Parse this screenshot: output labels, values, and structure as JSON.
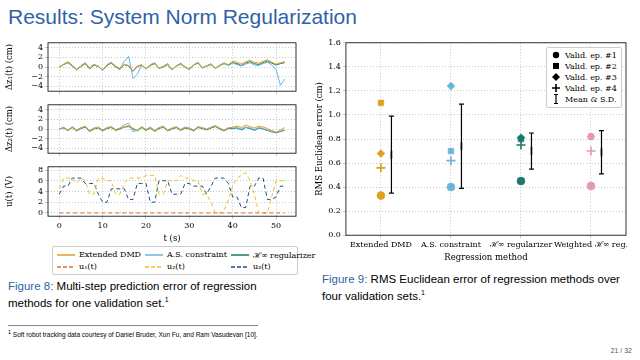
{
  "slide": {
    "title": "Results: System Norm Regularization",
    "captions": [
      {
        "label": "Figure 8:",
        "text": "Multi-step prediction error of regression methods for one validation set.",
        "note": "1"
      },
      {
        "label": "Figure 9:",
        "text": "RMS Euclidean error of regression methods over four validation sets.",
        "note": "1"
      }
    ],
    "footnote": {
      "mark": "1",
      "text": "Soft robot tracking data courtesy of Daniel Bruder, Xun Fu, and Ram Vasudevan [10]."
    },
    "page": "21 / 32"
  },
  "chart_data": [
    {
      "type": "line",
      "y_label": "Δz₁(t) (cm)",
      "grid": true,
      "tick_labels": "y",
      "legend": "bottom",
      "x": [
        0,
        1,
        2,
        3,
        4,
        5,
        6,
        7,
        8,
        9,
        10,
        11,
        12,
        13,
        14,
        15,
        16,
        17,
        18,
        19,
        20,
        21,
        22,
        23,
        24,
        25,
        26,
        27,
        28,
        29,
        30,
        31,
        32,
        33,
        34,
        35,
        36,
        37,
        38,
        39,
        40,
        41,
        42,
        43,
        44,
        45,
        46,
        47,
        48,
        49,
        50,
        51,
        52
      ],
      "xlim": [
        -2.6,
        54.6
      ],
      "xticks": [
        0,
        10,
        20,
        30,
        40,
        50
      ],
      "ylim": [
        -5,
        5
      ],
      "yticks": [
        {
          "value": -4,
          "label": "−4"
        },
        {
          "value": -2,
          "label": "−2"
        },
        0,
        2,
        4
      ],
      "series": [
        {
          "name": "Extended DMD",
          "color": "#e0a020",
          "line_style": "solid",
          "values": [
            0,
            0.5,
            1.0,
            0.3,
            -0.5,
            0.2,
            0.8,
            -0.3,
            0.5,
            0.2,
            -0.6,
            0.4,
            0.9,
            0.1,
            -0.4,
            0.6,
            0.3,
            -0.8,
            0.2,
            0.5,
            -0.3,
            0.4,
            0.8,
            -0.2,
            0.1,
            0.6,
            -0.5,
            0.3,
            0.7,
            0.1,
            -0.4,
            0.5,
            0.9,
            -0.1,
            0.3,
            0.6,
            -0.2,
            0.4,
            0.8,
            0.5,
            1.2,
            1.0,
            0.6,
            1.1,
            1.4,
            1.0,
            0.8,
            1.2,
            1.5,
            1.0,
            0.6,
            0.9,
            1.1
          ]
        },
        {
          "name": "A.S. constraint",
          "color": "#6bb3e0",
          "line_style": "solid",
          "values": [
            0,
            0.6,
            1.1,
            0.4,
            -0.6,
            0.3,
            0.9,
            -0.2,
            0.6,
            0.1,
            -0.7,
            0.5,
            1.0,
            0.2,
            -0.3,
            1.2,
            2.2,
            -2.4,
            -1.5,
            0.4,
            -0.4,
            0.5,
            0.9,
            -0.3,
            0.2,
            0.7,
            -0.6,
            0.2,
            0.8,
            0.0,
            -0.5,
            0.4,
            1.0,
            -0.2,
            0.2,
            0.7,
            -0.3,
            0.3,
            0.9,
            0.3,
            0.8,
            0.5,
            0.2,
            0.6,
            0.9,
            0.4,
            0.3,
            0.7,
            1.0,
            0.4,
            -0.5,
            -3.8,
            -2.5
          ]
        },
        {
          "name": "ℋ∞ regularizer",
          "color": "#1a7a6e",
          "line_style": "solid",
          "values": [
            0,
            0.5,
            0.9,
            0.2,
            -0.6,
            0.1,
            0.7,
            -0.4,
            0.4,
            0.1,
            -0.7,
            0.3,
            0.8,
            0.0,
            -0.5,
            0.5,
            0.2,
            -0.9,
            0.1,
            0.4,
            -0.4,
            0.3,
            0.7,
            -0.3,
            0.0,
            0.5,
            -0.6,
            0.2,
            0.6,
            0.0,
            -0.5,
            0.4,
            0.8,
            -0.2,
            0.2,
            0.5,
            -0.3,
            0.3,
            0.7,
            0.4,
            0.9,
            0.7,
            0.3,
            0.8,
            1.1,
            0.7,
            0.5,
            0.9,
            1.2,
            0.8,
            0.4,
            0.7,
            0.9
          ]
        }
      ]
    },
    {
      "type": "line",
      "y_label": "Δz₂(t) (cm)",
      "grid": true,
      "tick_labels": "y",
      "x": [
        0,
        1,
        2,
        3,
        4,
        5,
        6,
        7,
        8,
        9,
        10,
        11,
        12,
        13,
        14,
        15,
        16,
        17,
        18,
        19,
        20,
        21,
        22,
        23,
        24,
        25,
        26,
        27,
        28,
        29,
        30,
        31,
        32,
        33,
        34,
        35,
        36,
        37,
        38,
        39,
        40,
        41,
        42,
        43,
        44,
        45,
        46,
        47,
        48,
        49,
        50,
        51,
        52
      ],
      "xlim": [
        -2.6,
        54.6
      ],
      "xticks": [
        0,
        10,
        20,
        30,
        40,
        50
      ],
      "ylim": [
        -5,
        5
      ],
      "yticks": [
        {
          "value": -4,
          "label": "−4"
        },
        {
          "value": -2,
          "label": "−2"
        },
        0,
        2,
        4
      ],
      "series": [
        {
          "name": "Extended DMD",
          "color": "#e0a020",
          "line_style": "solid",
          "values": [
            0,
            0.3,
            -0.2,
            0.4,
            -0.3,
            0.2,
            0.5,
            -0.4,
            0.1,
            0.3,
            -0.3,
            0.2,
            0.4,
            -0.2,
            0.1,
            0.5,
            0.7,
            0.2,
            -0.3,
            0.4,
            -0.2,
            0.3,
            -0.4,
            0.2,
            0.5,
            -0.3,
            0.1,
            0.4,
            -0.2,
            0.3,
            0.1,
            -0.3,
            0.4,
            0.2,
            -0.1,
            0.3,
            0.6,
            0.1,
            -0.3,
            0.2,
            0.4,
            0.6,
            0.3,
            0.8,
            0.5,
            0.2,
            0.6,
            0.4,
            0.1,
            -0.3,
            -0.6,
            -0.4,
            -0.2
          ]
        },
        {
          "name": "A.S. constraint",
          "color": "#6bb3e0",
          "line_style": "solid",
          "values": [
            0,
            0.4,
            -0.3,
            0.5,
            -0.2,
            0.3,
            0.6,
            -0.3,
            0.2,
            0.4,
            -0.2,
            0.3,
            0.5,
            -0.1,
            0.2,
            0.9,
            1.2,
            -0.6,
            -0.2,
            0.5,
            -0.1,
            0.4,
            -0.3,
            0.3,
            0.6,
            -0.2,
            0.2,
            0.5,
            -0.1,
            0.4,
            0.2,
            -0.2,
            0.5,
            0.3,
            0.0,
            0.4,
            0.7,
            0.2,
            -0.2,
            0.3,
            0.2,
            0.3,
            0.0,
            0.4,
            0.2,
            -0.1,
            0.3,
            0.1,
            -0.2,
            -0.5,
            -0.8,
            -0.2,
            0.3
          ]
        },
        {
          "name": "ℋ∞ regularizer",
          "color": "#1a7a6e",
          "line_style": "solid",
          "values": [
            0,
            0.2,
            -0.3,
            0.3,
            -0.4,
            0.1,
            0.4,
            -0.5,
            0.0,
            0.2,
            -0.4,
            0.1,
            0.3,
            -0.3,
            0.0,
            0.4,
            0.5,
            0.0,
            -0.4,
            0.3,
            -0.3,
            0.2,
            -0.5,
            0.1,
            0.4,
            -0.4,
            0.0,
            0.3,
            -0.3,
            0.2,
            0.0,
            -0.4,
            0.3,
            0.1,
            -0.2,
            0.2,
            0.5,
            0.0,
            -0.4,
            0.1,
            0.1,
            0.2,
            -0.2,
            0.3,
            0.1,
            -0.3,
            0.2,
            0.0,
            -0.3,
            -0.6,
            -0.8,
            -0.5,
            -0.3
          ]
        }
      ]
    },
    {
      "type": "line",
      "y_label": "u(t) (V)",
      "x_label": "t (s)",
      "grid": true,
      "legend": "bottom",
      "x": [
        0,
        1,
        2,
        3,
        4,
        5,
        6,
        7,
        8,
        9,
        10,
        11,
        12,
        13,
        14,
        15,
        16,
        17,
        18,
        19,
        20,
        21,
        22,
        23,
        24,
        25,
        26,
        27,
        28,
        29,
        30,
        31,
        32,
        33,
        34,
        35,
        36,
        37,
        38,
        39,
        40,
        41,
        42,
        43,
        44,
        45,
        46,
        47,
        48,
        49,
        50,
        51,
        52
      ],
      "xlim": [
        -2.6,
        54.6
      ],
      "xticks": [
        0,
        10,
        20,
        30,
        40,
        50
      ],
      "ylim": [
        -0.6,
        8.6
      ],
      "yticks": [
        0,
        2,
        4,
        6,
        8
      ],
      "series": [
        {
          "name": "u₁(t)",
          "color": "#d9702a",
          "line_style": "dashed",
          "values": [
            0,
            0,
            0,
            0,
            0,
            0,
            0,
            0,
            0,
            0,
            0,
            0,
            0,
            0,
            0,
            0,
            0,
            0,
            0,
            0,
            0,
            0,
            0,
            0,
            0,
            0,
            0,
            0,
            0,
            0,
            0,
            0,
            0,
            0,
            0,
            0,
            0,
            0,
            0,
            0,
            0,
            0,
            0,
            0,
            0,
            0,
            0,
            0,
            0,
            0,
            0,
            0,
            0
          ]
        },
        {
          "name": "u₂(t)",
          "color": "#f0c020",
          "line_style": "dashed",
          "values": [
            4.5,
            6.5,
            6.5,
            6.5,
            5.5,
            6.5,
            6.0,
            3.5,
            3.5,
            6.5,
            6.5,
            6.0,
            6.0,
            3.5,
            3.5,
            5.5,
            6.5,
            6.5,
            6.5,
            6.5,
            7.0,
            7.0,
            7.0,
            3.5,
            3.5,
            6.0,
            6.0,
            6.0,
            7.0,
            6.5,
            6.5,
            6.0,
            6.0,
            3.5,
            3.5,
            2.0,
            0.0,
            0.0,
            0.5,
            2.5,
            5.0,
            6.5,
            7.0,
            7.5,
            6.0,
            3.5,
            0.0,
            0.0,
            0.0,
            3.0,
            6.0,
            6.0,
            6.0
          ]
        },
        {
          "name": "u₃(t)",
          "color": "#1a4e8a",
          "line_style": "dashed",
          "values": [
            3.5,
            5.0,
            5.0,
            6.5,
            6.5,
            6.5,
            5.5,
            5.5,
            5.5,
            3.5,
            2.0,
            2.0,
            4.5,
            4.5,
            4.5,
            4.5,
            2.5,
            2.5,
            5.5,
            5.5,
            5.5,
            2.0,
            2.0,
            6.0,
            6.0,
            6.0,
            3.5,
            3.5,
            3.5,
            5.5,
            5.5,
            5.0,
            5.0,
            5.0,
            3.5,
            5.0,
            6.5,
            6.5,
            6.5,
            5.5,
            3.0,
            3.0,
            1.0,
            1.0,
            5.0,
            5.0,
            6.5,
            6.5,
            2.5,
            2.5,
            3.0,
            5.0,
            5.0
          ]
        }
      ]
    },
    {
      "type": "scatter",
      "y_label": "RMS Euclidean error (cm)",
      "x_label": "Regression method",
      "grid": true,
      "legend": "upper right",
      "categories": [
        "Extended DMD",
        "A.S. constraint",
        "ℋ∞ regularizer",
        "Weighted ℋ∞ reg."
      ],
      "ylim": [
        0,
        1.6
      ],
      "yticks": [
        {
          "value": 0,
          "label": "0.0"
        },
        0.2,
        0.4,
        0.6,
        0.8,
        {
          "value": 1,
          "label": "1.0"
        },
        1.2,
        1.4,
        1.6
      ],
      "series": [
        {
          "name": "Valid. ep. #1",
          "marker": "circle",
          "colors": [
            "#e0a020",
            "#6bb3e0",
            "#1a7a6e",
            "#e896b8"
          ],
          "values": [
            0.33,
            0.4,
            0.45,
            0.41
          ]
        },
        {
          "name": "Valid. ep. #2",
          "marker": "square",
          "colors": [
            "#e0a020",
            "#6bb3e0",
            "#1a7a6e",
            "#e896b8"
          ],
          "values": [
            1.1,
            0.7,
            0.8,
            0.82
          ]
        },
        {
          "name": "Valid. ep. #3",
          "marker": "diamond",
          "colors": [
            "#e0a020",
            "#6bb3e0",
            "#1a7a6e",
            "#e896b8"
          ],
          "values": [
            0.68,
            1.24,
            0.81,
            0.82
          ]
        },
        {
          "name": "Valid. ep. #4",
          "marker": "plus",
          "colors": [
            "#e0a020",
            "#6bb3e0",
            "#1a7a6e",
            "#e896b8"
          ],
          "values": [
            0.56,
            0.62,
            0.75,
            0.7
          ]
        },
        {
          "name": "Mean & S.D.",
          "marker": "errorbar",
          "color": "#000000",
          "values": [
            0.67,
            0.74,
            0.7,
            0.69
          ],
          "sd": [
            0.32,
            0.35,
            0.15,
            0.18
          ]
        }
      ]
    }
  ]
}
